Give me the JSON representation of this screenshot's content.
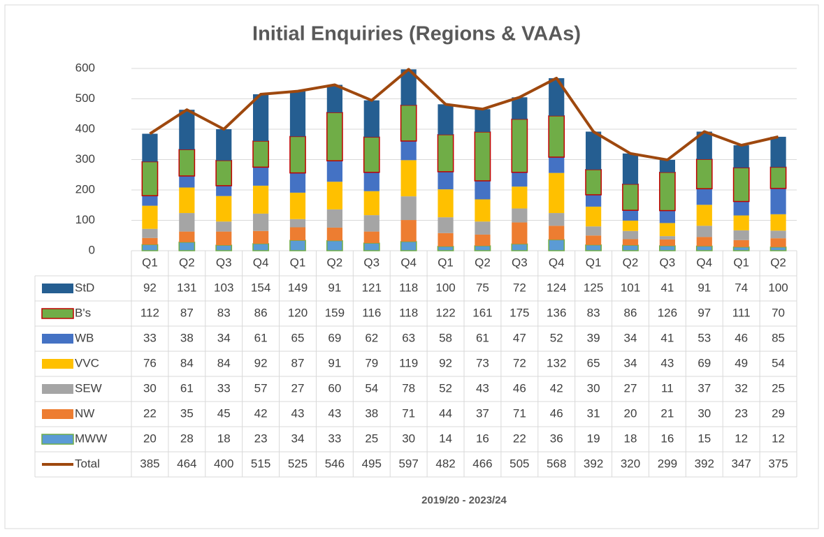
{
  "chart_data": {
    "type": "bar",
    "stacked": true,
    "title": "Initial Enquiries (Regions & VAAs)",
    "x_label": "2019/20 - 2023/24",
    "categories": [
      "Q1",
      "Q2",
      "Q3",
      "Q4",
      "Q1",
      "Q2",
      "Q3",
      "Q4",
      "Q1",
      "Q2",
      "Q3",
      "Q4",
      "Q1",
      "Q2",
      "Q3",
      "Q4",
      "Q1",
      "Q2"
    ],
    "series": [
      {
        "name": "StD",
        "color": "#255e91",
        "values": [
          92,
          131,
          103,
          154,
          149,
          91,
          121,
          118,
          100,
          75,
          72,
          124,
          125,
          101,
          41,
          91,
          74,
          100
        ]
      },
      {
        "name": "B's",
        "color": "#70ad47",
        "border": "#c00000",
        "values": [
          112,
          87,
          83,
          86,
          120,
          159,
          116,
          118,
          122,
          161,
          175,
          136,
          83,
          86,
          126,
          97,
          111,
          70
        ]
      },
      {
        "name": "WB",
        "color": "#4472c4",
        "values": [
          33,
          38,
          34,
          61,
          65,
          69,
          62,
          63,
          58,
          61,
          47,
          52,
          39,
          34,
          41,
          53,
          46,
          85
        ]
      },
      {
        "name": "VVC",
        "color": "#ffc000",
        "values": [
          76,
          84,
          84,
          92,
          87,
          91,
          79,
          119,
          92,
          73,
          72,
          132,
          65,
          34,
          43,
          69,
          49,
          54
        ]
      },
      {
        "name": "SEW",
        "color": "#a5a5a5",
        "values": [
          30,
          61,
          33,
          57,
          27,
          60,
          54,
          78,
          52,
          43,
          46,
          42,
          30,
          27,
          11,
          37,
          32,
          25
        ]
      },
      {
        "name": "NW",
        "color": "#ed7d31",
        "values": [
          22,
          35,
          45,
          42,
          43,
          43,
          38,
          71,
          44,
          37,
          71,
          46,
          31,
          20,
          21,
          30,
          23,
          29
        ]
      },
      {
        "name": "MWW",
        "color": "#5b9bd5",
        "border": "#70ad47",
        "values": [
          20,
          28,
          18,
          23,
          34,
          33,
          25,
          30,
          14,
          16,
          22,
          36,
          19,
          18,
          16,
          15,
          12,
          12
        ]
      }
    ],
    "line_series": {
      "name": "Total",
      "color": "#9e480e",
      "values": [
        385,
        464,
        400,
        515,
        525,
        546,
        495,
        597,
        482,
        466,
        505,
        568,
        392,
        320,
        299,
        392,
        347,
        375
      ]
    },
    "ylim": [
      0,
      600
    ],
    "yticks": [
      0,
      100,
      200,
      300,
      400,
      500,
      600
    ],
    "grid": true
  }
}
